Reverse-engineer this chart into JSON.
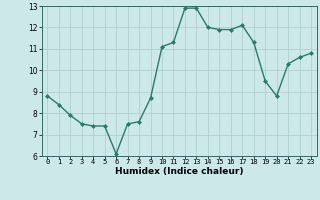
{
  "x": [
    0,
    1,
    2,
    3,
    4,
    5,
    6,
    7,
    8,
    9,
    10,
    11,
    12,
    13,
    14,
    15,
    16,
    17,
    18,
    19,
    20,
    21,
    22,
    23
  ],
  "y": [
    8.8,
    8.4,
    7.9,
    7.5,
    7.4,
    7.4,
    6.1,
    7.5,
    7.6,
    8.7,
    11.1,
    11.3,
    12.9,
    12.9,
    12.0,
    11.9,
    11.9,
    12.1,
    11.3,
    9.5,
    8.8,
    10.3,
    10.6,
    10.8
  ],
  "xlabel": "Humidex (Indice chaleur)",
  "ylim": [
    6,
    13
  ],
  "xlim": [
    -0.5,
    23.5
  ],
  "yticks": [
    6,
    7,
    8,
    9,
    10,
    11,
    12,
    13
  ],
  "xticks": [
    0,
    1,
    2,
    3,
    4,
    5,
    6,
    7,
    8,
    9,
    10,
    11,
    12,
    13,
    14,
    15,
    16,
    17,
    18,
    19,
    20,
    21,
    22,
    23
  ],
  "line_color": "#2a7a6a",
  "marker_color": "#2a7a6a",
  "bg_color": "#cce8e8",
  "grid_color": "#aacccc"
}
